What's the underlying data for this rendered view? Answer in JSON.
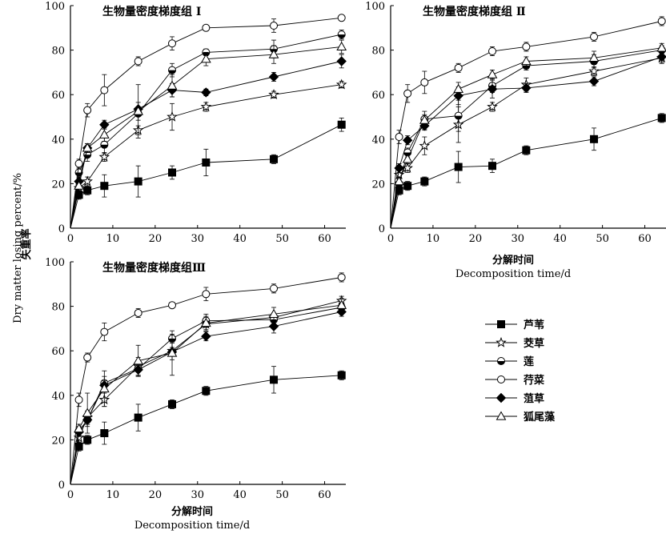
{
  "figure": {
    "y_label_cn": "失重率",
    "y_label_en": "Dry matter losing percent/%",
    "x_label_cn": "分解时间",
    "x_label_en": "Decomposition time/d"
  },
  "legend": [
    {
      "name": "芦苇",
      "marker": "square-filled"
    },
    {
      "name": "茭草",
      "marker": "star-open"
    },
    {
      "name": "莲",
      "marker": "circle-half"
    },
    {
      "name": "荇菜",
      "marker": "circle-open"
    },
    {
      "name": "菹草",
      "marker": "diamond-filled"
    },
    {
      "name": "狐尾藻",
      "marker": "triangle-open"
    }
  ],
  "chart_data": [
    {
      "type": "line",
      "title": "生物量密度梯度组 Ⅰ",
      "xlim": [
        0,
        65
      ],
      "ylim": [
        0,
        100
      ],
      "xticks": [
        0,
        10,
        20,
        30,
        40,
        50,
        60
      ],
      "yticks": [
        0,
        20,
        40,
        60,
        80,
        100
      ],
      "x": [
        0,
        2,
        4,
        8,
        16,
        24,
        32,
        48,
        64
      ],
      "series": [
        {
          "name": "芦苇",
          "values": [
            0,
            15,
            17,
            19,
            21,
            25,
            29.5,
            31,
            46.5
          ],
          "err": [
            0,
            2,
            2,
            5,
            7,
            3,
            6,
            2,
            3
          ]
        },
        {
          "name": "茭草",
          "values": [
            0,
            18,
            21,
            32,
            44,
            50,
            54.5,
            60,
            64.5
          ],
          "err": [
            0,
            2,
            2,
            2,
            2,
            6,
            2,
            1.5,
            1.5
          ]
        },
        {
          "name": "莲",
          "values": [
            0,
            25,
            33,
            37.5,
            51.5,
            71,
            79,
            80.5,
            87
          ],
          "err": [
            0,
            2,
            3,
            4,
            3,
            3,
            1.5,
            4,
            2
          ]
        },
        {
          "name": "荇菜",
          "values": [
            0,
            29,
            53,
            62,
            75,
            83,
            90,
            91,
            94.5
          ],
          "err": [
            0,
            2,
            3,
            7,
            2,
            3,
            1,
            3,
            1
          ]
        },
        {
          "name": "菹草",
          "values": [
            0,
            21,
            36,
            46.5,
            53.5,
            62,
            61,
            68,
            75
          ],
          "err": [
            0,
            2,
            2,
            2,
            3,
            3,
            1.5,
            2,
            3
          ]
        },
        {
          "name": "狐尾藻",
          "values": [
            0,
            19,
            36,
            42,
            52.5,
            64,
            76,
            78,
            81.5
          ],
          "err": [
            0,
            2,
            2,
            3,
            12,
            5,
            3,
            4,
            3
          ]
        }
      ]
    },
    {
      "type": "line",
      "title": "生物量密度梯度组 Ⅱ",
      "xlim": [
        0,
        65
      ],
      "ylim": [
        0,
        100
      ],
      "xticks": [
        0,
        10,
        20,
        30,
        40,
        50,
        60
      ],
      "yticks": [
        0,
        20,
        40,
        60,
        80,
        100
      ],
      "x": [
        0,
        2,
        4,
        8,
        16,
        24,
        32,
        48,
        64
      ],
      "series": [
        {
          "name": "芦苇",
          "values": [
            0,
            17,
            19,
            21,
            27.5,
            28,
            35,
            40,
            49.5
          ],
          "err": [
            0,
            2,
            2,
            2,
            7,
            3,
            2,
            5,
            2
          ]
        },
        {
          "name": "茭草",
          "values": [
            0,
            24,
            27,
            37,
            46.5,
            54.5,
            64.5,
            70.5,
            76.5
          ],
          "err": [
            0,
            2,
            2,
            4,
            8,
            2,
            3,
            2,
            2
          ]
        },
        {
          "name": "莲",
          "values": [
            0,
            20,
            34,
            49,
            50.5,
            64,
            73,
            75,
            80
          ],
          "err": [
            0,
            2,
            2,
            2,
            7,
            3,
            2,
            3,
            2
          ]
        },
        {
          "name": "荇菜",
          "values": [
            0,
            41,
            60.5,
            65.5,
            72,
            79.5,
            81.5,
            86,
            93
          ],
          "err": [
            0,
            3,
            4,
            5,
            2,
            2,
            2,
            2,
            2
          ]
        },
        {
          "name": "菹草",
          "values": [
            0,
            27,
            39.5,
            46,
            59.5,
            62.5,
            63,
            66,
            77
          ],
          "err": [
            0,
            2,
            2,
            2,
            4,
            4,
            2,
            2,
            3
          ]
        },
        {
          "name": "狐尾藻",
          "values": [
            0,
            21,
            31,
            48.5,
            62.5,
            69,
            75,
            76.5,
            81
          ],
          "err": [
            0,
            2,
            2,
            4,
            3,
            2,
            2,
            3,
            2
          ]
        }
      ]
    },
    {
      "type": "line",
      "title": "生物量密度梯度组Ⅲ",
      "xlim": [
        0,
        65
      ],
      "ylim": [
        0,
        100
      ],
      "xticks": [
        0,
        10,
        20,
        30,
        40,
        50,
        60
      ],
      "yticks": [
        0,
        20,
        40,
        60,
        80,
        100
      ],
      "x": [
        0,
        2,
        4,
        8,
        16,
        24,
        32,
        48,
        64
      ],
      "series": [
        {
          "name": "芦苇",
          "values": [
            0,
            17,
            20,
            23,
            30,
            36,
            42,
            47,
            49
          ],
          "err": [
            0,
            2,
            2,
            5,
            6,
            2,
            2,
            6,
            2
          ]
        },
        {
          "name": "茭草",
          "values": [
            0,
            21,
            30,
            38,
            53,
            60,
            72,
            75,
            82.5
          ],
          "err": [
            0,
            2,
            3,
            3,
            4,
            4,
            3,
            2,
            2
          ]
        },
        {
          "name": "莲",
          "values": [
            0,
            24,
            29,
            45.5,
            52,
            65.5,
            73.5,
            74,
            79.5
          ],
          "err": [
            0,
            2,
            3,
            3,
            3,
            2,
            3,
            2,
            2
          ]
        },
        {
          "name": "荇菜",
          "values": [
            0,
            38,
            57,
            68.5,
            77,
            80.5,
            85.5,
            88,
            93
          ],
          "err": [
            0,
            3,
            2,
            4,
            2,
            1,
            3,
            2,
            2
          ]
        },
        {
          "name": "菹草",
          "values": [
            0,
            23.5,
            29,
            44.5,
            51.5,
            59.5,
            66.5,
            71,
            77.5
          ],
          "err": [
            0,
            2,
            2,
            2,
            3,
            2,
            2,
            3,
            2
          ]
        },
        {
          "name": "狐尾藻",
          "values": [
            0,
            25,
            32,
            43,
            55.5,
            59,
            72.5,
            76.5,
            80.5
          ],
          "err": [
            0,
            2,
            9,
            8,
            7,
            10,
            3,
            3,
            3
          ]
        }
      ]
    }
  ]
}
